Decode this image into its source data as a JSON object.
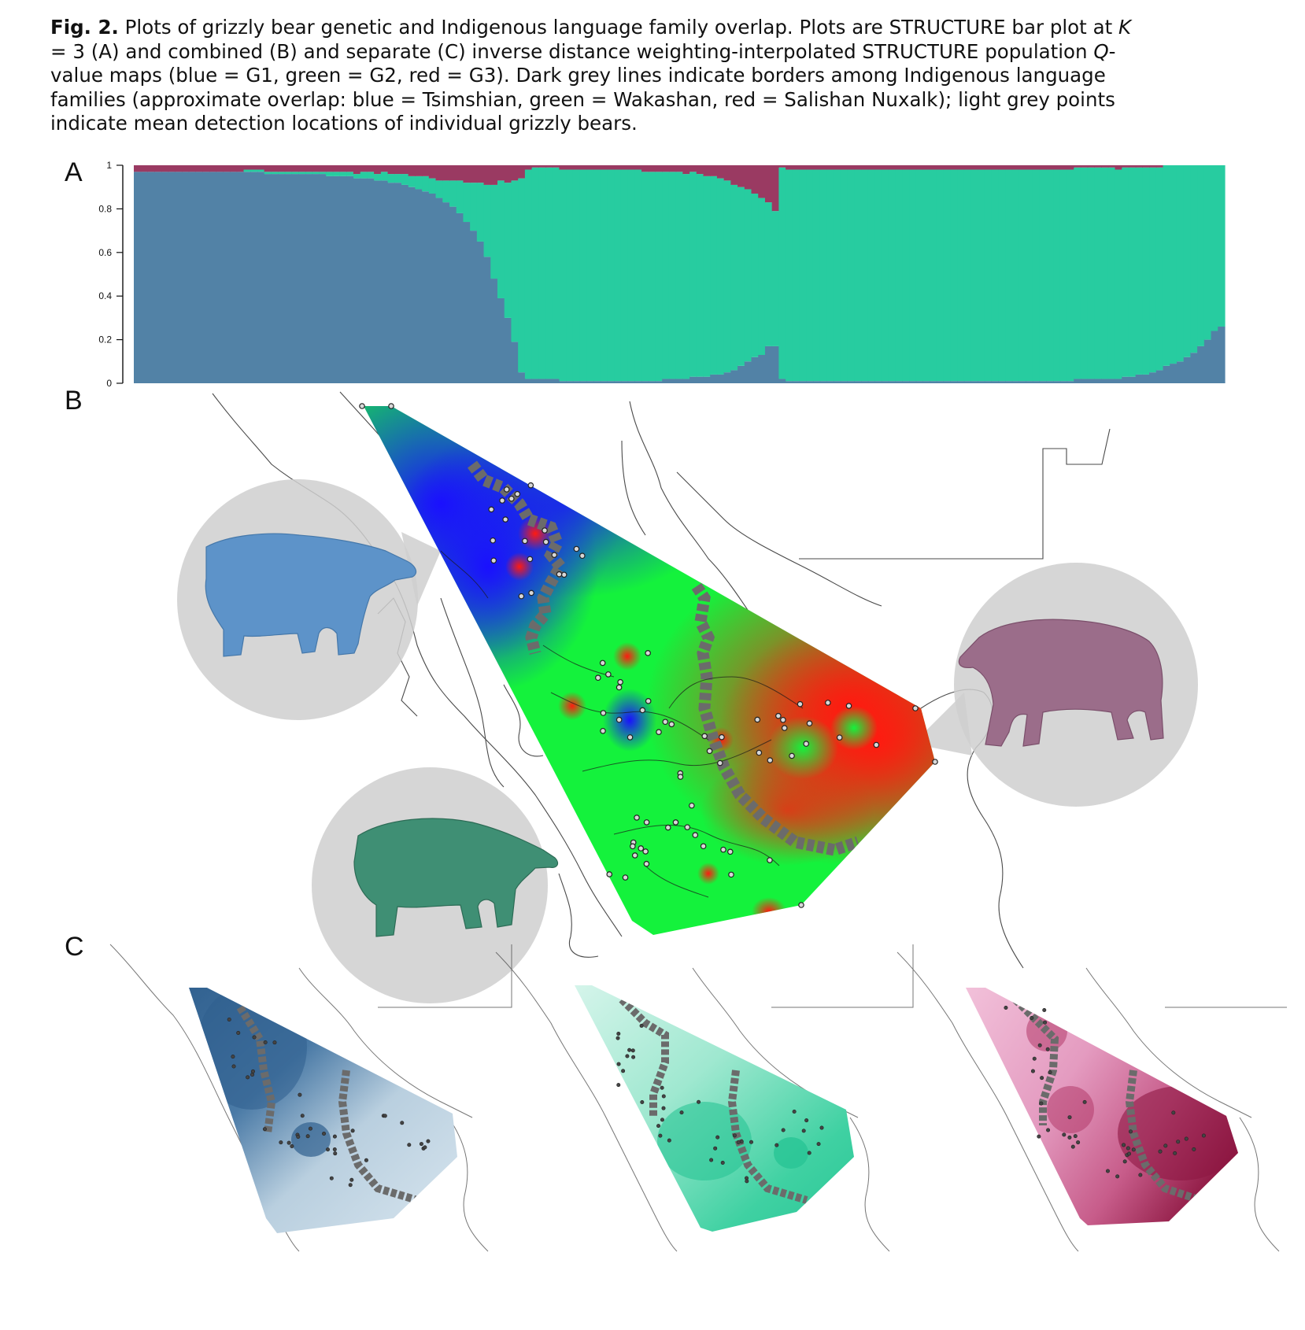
{
  "caption": {
    "label": "Fig. 2.",
    "seg1": " Plots of grizzly bear genetic and Indigenous language family overlap. Plots are STRUCTURE bar plot at ",
    "k_symbol": "K",
    "seg2": " = 3 (A) and combined (B) and separate (C) inverse distance weighting-interpolated STRUCTURE population ",
    "q_symbol": "Q",
    "seg3": "-value maps (blue = G1, green = G2, red = G3). Dark grey lines indicate borders among Indigenous language families (approximate overlap: blue = Tsimshian, green = Wakashan, red = Salishan Nuxalk); light grey points indicate mean detection locations of individual grizzly bears."
  },
  "panels": {
    "a": "A",
    "b": "B",
    "c": "C"
  },
  "colors": {
    "g1_blue": "#5282a6",
    "g2_green": "#27cca0",
    "g3_red": "#9a3a62",
    "map_blue": "#1a10ff",
    "map_green": "#14f23c",
    "map_red": "#ff2a10",
    "border_grey": "#6b6b6b",
    "bubble_grey": "#cfcfcf"
  },
  "chart_data": {
    "type": "bar",
    "stacked": true,
    "xlabel": "",
    "ylabel": "",
    "ylim": [
      0,
      1
    ],
    "yticks": [
      "0",
      "0.2",
      "0.4",
      "0.6",
      "0.8",
      "1"
    ],
    "series": [
      {
        "color": "#5282a6",
        "values": [
          0.97,
          0.97,
          0.97,
          0.97,
          0.97,
          0.97,
          0.97,
          0.97,
          0.97,
          0.97,
          0.97,
          0.97,
          0.97,
          0.97,
          0.97,
          0.97,
          0.97,
          0.97,
          0.97,
          0.96,
          0.96,
          0.96,
          0.96,
          0.96,
          0.96,
          0.96,
          0.96,
          0.96,
          0.95,
          0.95,
          0.95,
          0.95,
          0.94,
          0.94,
          0.94,
          0.93,
          0.93,
          0.92,
          0.92,
          0.91,
          0.9,
          0.89,
          0.88,
          0.87,
          0.85,
          0.83,
          0.81,
          0.78,
          0.74,
          0.7,
          0.65,
          0.58,
          0.48,
          0.39,
          0.3,
          0.19,
          0.05,
          0.02,
          0.02,
          0.02,
          0.02,
          0.02,
          0.01,
          0.01,
          0.01,
          0.01,
          0.01,
          0.01,
          0.01,
          0.01,
          0.01,
          0.01,
          0.01,
          0.01,
          0.01,
          0.01,
          0.01,
          0.02,
          0.02,
          0.02,
          0.02,
          0.03,
          0.03,
          0.03,
          0.04,
          0.04,
          0.05,
          0.06,
          0.08,
          0.1,
          0.12,
          0.13,
          0.17,
          0.17,
          0.02,
          0.01,
          0.01,
          0.01,
          0.01,
          0.01,
          0.01,
          0.01,
          0.01,
          0.01,
          0.01,
          0.01,
          0.01,
          0.01,
          0.01,
          0.01,
          0.01,
          0.01,
          0.01,
          0.01,
          0.01,
          0.01,
          0.01,
          0.01,
          0.01,
          0.01,
          0.01,
          0.01,
          0.01,
          0.01,
          0.01,
          0.01,
          0.01,
          0.01,
          0.01,
          0.01,
          0.01,
          0.01,
          0.01,
          0.01,
          0.01,
          0.01,
          0.01,
          0.02,
          0.02,
          0.02,
          0.02,
          0.02,
          0.02,
          0.02,
          0.03,
          0.03,
          0.04,
          0.04,
          0.05,
          0.06,
          0.08,
          0.09,
          0.1,
          0.12,
          0.14,
          0.17,
          0.2,
          0.24,
          0.26
        ]
      },
      {
        "color": "#27cca0",
        "values": [
          0.0,
          0.0,
          0.0,
          0.0,
          0.0,
          0.0,
          0.0,
          0.0,
          0.0,
          0.0,
          0.0,
          0.0,
          0.0,
          0.0,
          0.0,
          0.0,
          0.01,
          0.01,
          0.01,
          0.01,
          0.01,
          0.01,
          0.01,
          0.01,
          0.01,
          0.01,
          0.01,
          0.01,
          0.02,
          0.02,
          0.02,
          0.02,
          0.02,
          0.03,
          0.03,
          0.03,
          0.04,
          0.04,
          0.04,
          0.05,
          0.05,
          0.06,
          0.07,
          0.07,
          0.08,
          0.1,
          0.12,
          0.15,
          0.18,
          0.22,
          0.27,
          0.33,
          0.43,
          0.54,
          0.62,
          0.74,
          0.89,
          0.96,
          0.97,
          0.97,
          0.97,
          0.97,
          0.97,
          0.97,
          0.97,
          0.97,
          0.97,
          0.97,
          0.97,
          0.97,
          0.97,
          0.97,
          0.97,
          0.97,
          0.96,
          0.96,
          0.96,
          0.95,
          0.95,
          0.95,
          0.94,
          0.94,
          0.93,
          0.92,
          0.91,
          0.9,
          0.88,
          0.85,
          0.82,
          0.79,
          0.75,
          0.72,
          0.66,
          0.62,
          0.97,
          0.97,
          0.97,
          0.97,
          0.97,
          0.97,
          0.97,
          0.97,
          0.97,
          0.97,
          0.97,
          0.97,
          0.97,
          0.97,
          0.97,
          0.97,
          0.97,
          0.97,
          0.97,
          0.97,
          0.97,
          0.97,
          0.97,
          0.97,
          0.97,
          0.97,
          0.97,
          0.97,
          0.97,
          0.97,
          0.97,
          0.97,
          0.97,
          0.97,
          0.97,
          0.97,
          0.97,
          0.97,
          0.97,
          0.97,
          0.97,
          0.97,
          0.97,
          0.97,
          0.97,
          0.97,
          0.97,
          0.97,
          0.97,
          0.96,
          0.96,
          0.96,
          0.95,
          0.95,
          0.94,
          0.93,
          0.92,
          0.91,
          0.9,
          0.88,
          0.86,
          0.83,
          0.8,
          0.76,
          0.74
        ]
      },
      {
        "color": "#9a3a62",
        "values": [
          0.03,
          0.03,
          0.03,
          0.03,
          0.03,
          0.03,
          0.03,
          0.03,
          0.03,
          0.03,
          0.03,
          0.03,
          0.03,
          0.03,
          0.03,
          0.03,
          0.02,
          0.02,
          0.02,
          0.03,
          0.03,
          0.03,
          0.03,
          0.03,
          0.03,
          0.03,
          0.03,
          0.03,
          0.03,
          0.03,
          0.03,
          0.03,
          0.04,
          0.03,
          0.03,
          0.04,
          0.03,
          0.04,
          0.04,
          0.04,
          0.05,
          0.05,
          0.05,
          0.06,
          0.07,
          0.07,
          0.07,
          0.07,
          0.08,
          0.08,
          0.08,
          0.09,
          0.09,
          0.07,
          0.08,
          0.07,
          0.06,
          0.02,
          0.01,
          0.01,
          0.01,
          0.01,
          0.02,
          0.02,
          0.02,
          0.02,
          0.02,
          0.02,
          0.02,
          0.02,
          0.02,
          0.02,
          0.02,
          0.02,
          0.03,
          0.03,
          0.03,
          0.03,
          0.03,
          0.03,
          0.04,
          0.03,
          0.04,
          0.05,
          0.05,
          0.06,
          0.07,
          0.09,
          0.1,
          0.11,
          0.13,
          0.15,
          0.17,
          0.21,
          0.01,
          0.02,
          0.02,
          0.02,
          0.02,
          0.02,
          0.02,
          0.02,
          0.02,
          0.02,
          0.02,
          0.02,
          0.02,
          0.02,
          0.02,
          0.02,
          0.02,
          0.02,
          0.02,
          0.02,
          0.02,
          0.02,
          0.02,
          0.02,
          0.02,
          0.02,
          0.02,
          0.02,
          0.02,
          0.02,
          0.02,
          0.02,
          0.02,
          0.02,
          0.02,
          0.02,
          0.02,
          0.02,
          0.02,
          0.02,
          0.02,
          0.02,
          0.02,
          0.01,
          0.01,
          0.01,
          0.01,
          0.01,
          0.01,
          0.02,
          0.01,
          0.01,
          0.01,
          0.01,
          0.01,
          0.01,
          0.0,
          0.0,
          0.0,
          0.0,
          0.0,
          0.0,
          0.0,
          0.0,
          0.0
        ]
      }
    ]
  },
  "maps": {
    "combined_legend": [
      "G1",
      "G2",
      "G3"
    ],
    "separate": [
      "G1",
      "G2",
      "G3"
    ]
  }
}
